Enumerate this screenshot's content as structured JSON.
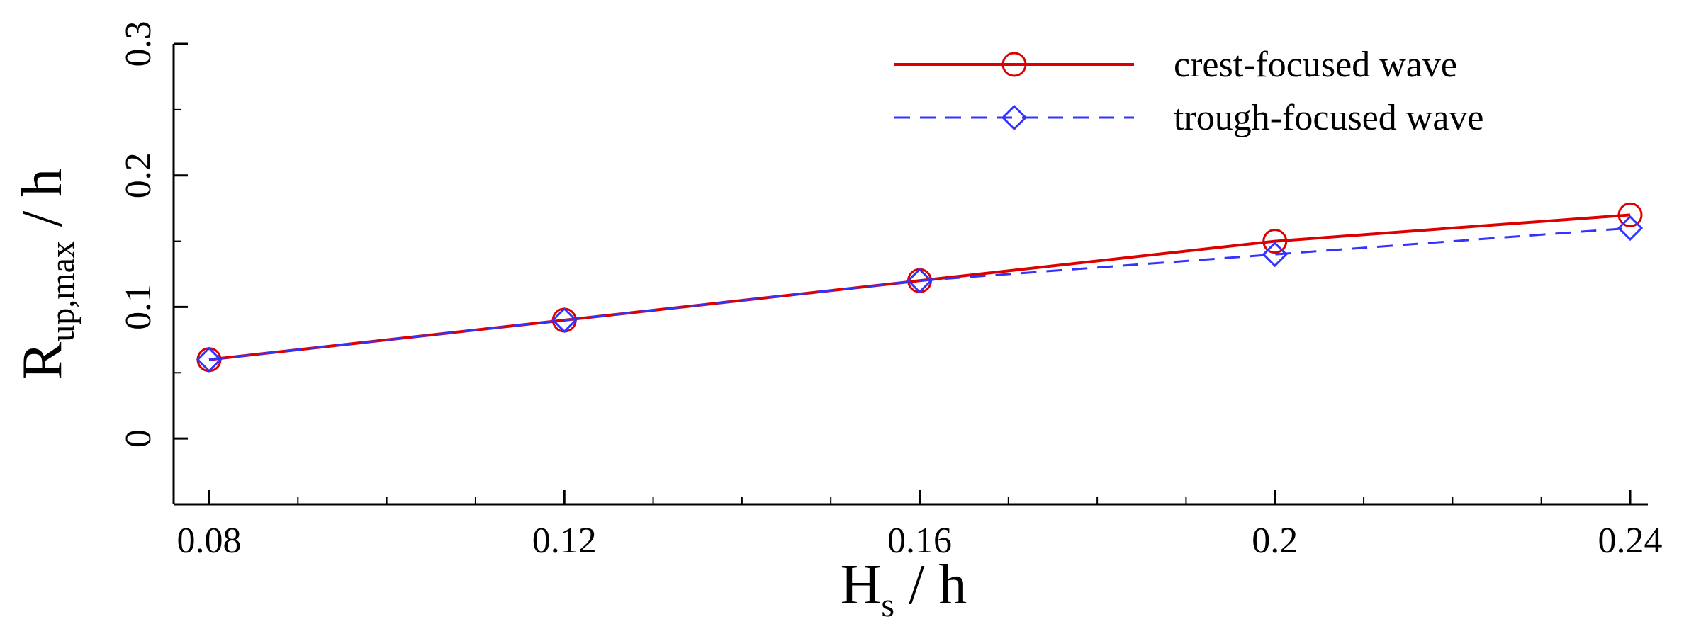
{
  "chart_data": {
    "type": "line",
    "x": [
      0.08,
      0.12,
      0.16,
      0.2,
      0.24
    ],
    "x_tick_labels": [
      "0.08",
      "0.12",
      "0.16",
      "0.2",
      "0.24"
    ],
    "y_tick_labels": [
      "0",
      "0.1",
      "0.2",
      "0.3"
    ],
    "xlim": [
      0.08,
      0.24
    ],
    "ylim": [
      -0.05,
      0.3
    ],
    "x_ticks": [
      0.08,
      0.12,
      0.16,
      0.2,
      0.24
    ],
    "y_ticks": [
      0,
      0.1,
      0.2,
      0.3
    ],
    "x_minor_step": 0.01,
    "y_minor_step": 0.05,
    "xlabel": {
      "main": "H",
      "sub": "s",
      "rest": " / h"
    },
    "ylabel": {
      "main": "R",
      "sub": "up,max",
      "rest": " / h"
    },
    "grid": false,
    "legend_position": "top-right",
    "series": [
      {
        "name": "crest-focused wave",
        "values": [
          0.06,
          0.09,
          0.12,
          0.15,
          0.17
        ],
        "color": "#dd0000",
        "marker": "circle",
        "dash": "solid"
      },
      {
        "name": "trough-focused wave",
        "values": [
          0.06,
          0.09,
          0.12,
          0.14,
          0.16
        ],
        "color": "#3333ff",
        "marker": "diamond",
        "dash": "dashed"
      }
    ]
  }
}
